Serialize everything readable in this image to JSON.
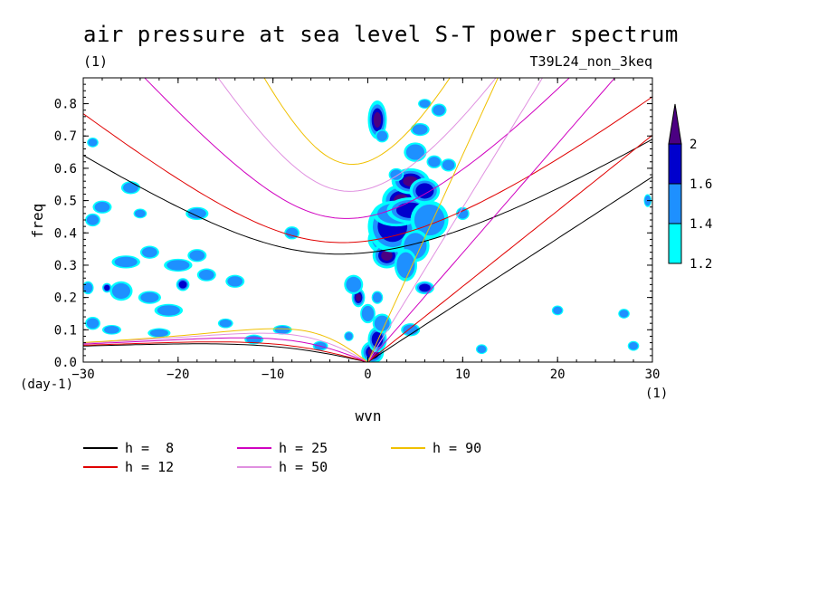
{
  "chart_data": {
    "type": "heatmap",
    "title": "air pressure at sea level S-T power spectrum",
    "subtitle_left": "(1)",
    "subtitle_right": "T39L24_non_3keq",
    "xlabel": "wvn",
    "ylabel": "freq",
    "x_unit": "(1)",
    "y_unit": "(day-1)",
    "xlim": [
      -30,
      30
    ],
    "ylim": [
      0,
      0.88
    ],
    "x_ticks": [
      -30,
      -20,
      -10,
      0,
      10,
      20,
      30
    ],
    "x_tick_labels": [
      "−30",
      "−20",
      "−10",
      "0",
      "10",
      "20",
      "30"
    ],
    "y_ticks": [
      0,
      0.1,
      0.2,
      0.3,
      0.4,
      0.5,
      0.6,
      0.7,
      0.8
    ],
    "y_tick_labels": [
      "0.0",
      "0.1",
      "0.2",
      "0.3",
      "0.4",
      "0.5",
      "0.6",
      "0.7",
      "0.8"
    ],
    "colorbar": {
      "levels": [
        1.2,
        1.4,
        1.6,
        2
      ],
      "labels": [
        "1.2",
        "1.4",
        "1.6",
        "2"
      ],
      "colors": [
        "#00ffff",
        "#1e90ff",
        "#0000cd",
        "#4b0082"
      ]
    },
    "legend": [
      {
        "label": "h =  8",
        "color": "#000000",
        "h": 8
      },
      {
        "label": "h = 12",
        "color": "#e00000",
        "h": 12
      },
      {
        "label": "h = 25",
        "color": "#d000c0",
        "h": 25
      },
      {
        "label": "h = 50",
        "color": "#e090e0",
        "h": 50
      },
      {
        "label": "h = 90",
        "color": "#f0c000",
        "h": 90
      }
    ],
    "blobs": [
      [
        1.0,
        0.75,
        1.0,
        0.06,
        3
      ],
      [
        1.5,
        0.7,
        0.7,
        0.02,
        1
      ],
      [
        2.2,
        0.38,
        2.2,
        0.05,
        3
      ],
      [
        2.0,
        0.33,
        1.5,
        0.04,
        3
      ],
      [
        2.6,
        0.42,
        2.6,
        0.08,
        2
      ],
      [
        3.5,
        0.5,
        2.0,
        0.05,
        3
      ],
      [
        4.5,
        0.56,
        2.0,
        0.04,
        3
      ],
      [
        3.0,
        0.46,
        2.5,
        0.04,
        1
      ],
      [
        4.5,
        0.47,
        2.5,
        0.04,
        2
      ],
      [
        6.0,
        0.53,
        1.6,
        0.04,
        2
      ],
      [
        5.0,
        0.65,
        1.2,
        0.03,
        1
      ],
      [
        5.5,
        0.72,
        1.0,
        0.02,
        1
      ],
      [
        7.5,
        0.78,
        0.8,
        0.02,
        1
      ],
      [
        8.5,
        0.61,
        0.8,
        0.02,
        1
      ],
      [
        6.5,
        0.44,
        2.0,
        0.06,
        1
      ],
      [
        5.0,
        0.36,
        1.5,
        0.05,
        1
      ],
      [
        4.0,
        0.3,
        1.2,
        0.05,
        1
      ],
      [
        -1.0,
        0.2,
        0.7,
        0.03,
        3
      ],
      [
        -1.5,
        0.24,
        1.0,
        0.03,
        1
      ],
      [
        0.5,
        0.03,
        1.2,
        0.035,
        3
      ],
      [
        1.0,
        0.07,
        1.0,
        0.04,
        2
      ],
      [
        1.5,
        0.12,
        1.0,
        0.03,
        1
      ],
      [
        0.0,
        0.15,
        0.8,
        0.03,
        1
      ],
      [
        1.0,
        0.2,
        0.6,
        0.02,
        1
      ],
      [
        4.5,
        0.1,
        1.0,
        0.02,
        1
      ],
      [
        6.0,
        0.23,
        1.0,
        0.02,
        2
      ],
      [
        -8.0,
        0.4,
        0.8,
        0.02,
        1
      ],
      [
        -25.0,
        0.54,
        1.0,
        0.02,
        1
      ],
      [
        -24.0,
        0.46,
        0.7,
        0.015,
        1
      ],
      [
        -18.0,
        0.46,
        1.2,
        0.02,
        1
      ],
      [
        -18.0,
        0.33,
        1.0,
        0.02,
        1
      ],
      [
        -20.0,
        0.3,
        1.5,
        0.02,
        1
      ],
      [
        -19.5,
        0.24,
        0.7,
        0.02,
        2
      ],
      [
        -21.0,
        0.16,
        1.5,
        0.02,
        1
      ],
      [
        -23.0,
        0.2,
        1.2,
        0.02,
        1
      ],
      [
        -26.0,
        0.22,
        1.2,
        0.03,
        1
      ],
      [
        -27.5,
        0.23,
        0.5,
        0.015,
        2
      ],
      [
        -17.0,
        0.27,
        1.0,
        0.02,
        1
      ],
      [
        -14.0,
        0.25,
        1.0,
        0.02,
        1
      ],
      [
        -25.5,
        0.31,
        1.5,
        0.02,
        1
      ],
      [
        -28.0,
        0.48,
        1.0,
        0.02,
        1
      ],
      [
        -29.0,
        0.44,
        0.8,
        0.02,
        1
      ],
      [
        -29.5,
        0.23,
        0.6,
        0.02,
        1
      ],
      [
        -29.0,
        0.68,
        0.6,
        0.015,
        1
      ],
      [
        -9.0,
        0.1,
        1.0,
        0.015,
        1
      ],
      [
        -5.0,
        0.05,
        0.8,
        0.015,
        1
      ],
      [
        -12.0,
        0.07,
        1.0,
        0.015,
        1
      ],
      [
        -22.0,
        0.09,
        1.2,
        0.015,
        1
      ],
      [
        -27.0,
        0.1,
        1.0,
        0.015,
        1
      ],
      [
        -15.0,
        0.12,
        0.8,
        0.015,
        1
      ],
      [
        -23.0,
        0.34,
        1.0,
        0.02,
        1
      ],
      [
        -29.0,
        0.12,
        0.8,
        0.02,
        1
      ],
      [
        -2.0,
        0.08,
        0.5,
        0.015,
        1
      ],
      [
        12.0,
        0.04,
        0.6,
        0.015,
        1
      ],
      [
        20.0,
        0.16,
        0.6,
        0.015,
        1
      ],
      [
        27.0,
        0.15,
        0.6,
        0.015,
        1
      ],
      [
        28.0,
        0.05,
        0.6,
        0.015,
        1
      ],
      [
        29.5,
        0.5,
        0.4,
        0.02,
        1
      ],
      [
        7.0,
        0.62,
        0.8,
        0.02,
        1
      ],
      [
        10.0,
        0.46,
        0.7,
        0.02,
        1
      ],
      [
        6.0,
        0.8,
        0.7,
        0.015,
        1
      ],
      [
        3.0,
        0.58,
        0.8,
        0.02,
        1
      ]
    ]
  }
}
